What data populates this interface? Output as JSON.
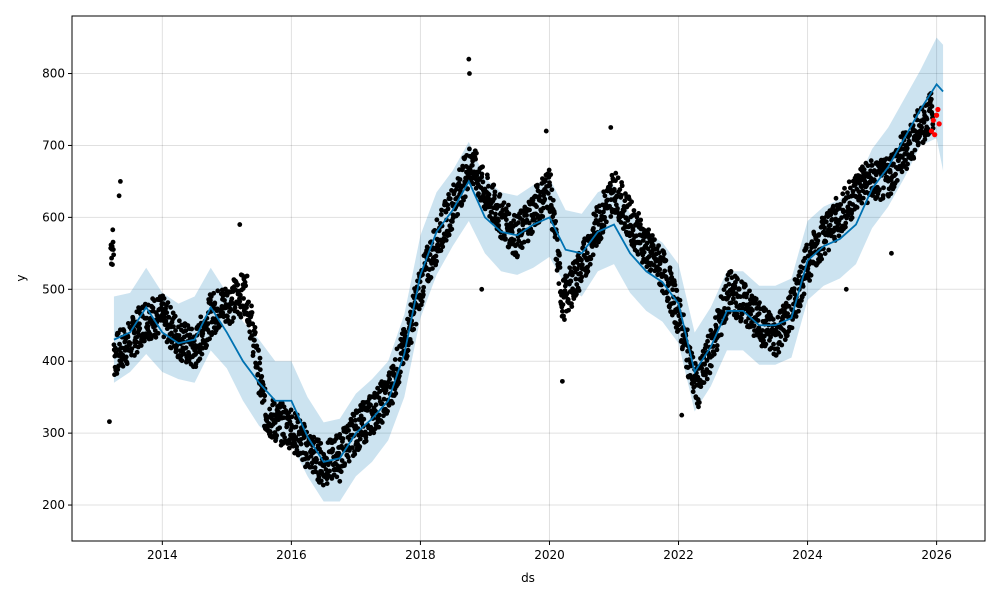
{
  "chart_data": {
    "type": "line",
    "title": "",
    "xlabel": "ds",
    "ylabel": "y",
    "xlim": [
      2012.6,
      2026.75
    ],
    "ylim": [
      150,
      880
    ],
    "x_ticks": [
      2014,
      2016,
      2018,
      2020,
      2022,
      2024,
      2026
    ],
    "x_tick_labels": [
      "2014",
      "2016",
      "2018",
      "2020",
      "2022",
      "2024",
      "2026"
    ],
    "y_ticks": [
      200,
      300,
      400,
      500,
      600,
      700,
      800
    ],
    "y_tick_labels": [
      "200",
      "300",
      "400",
      "500",
      "600",
      "700",
      "800"
    ],
    "grid": true,
    "colors": {
      "trend": "#0072B2",
      "interval": "#0072B2",
      "observed": "#000000",
      "recent": "#ff0000"
    },
    "forecast": {
      "x": [
        2013.25,
        2013.5,
        2013.75,
        2014.0,
        2014.25,
        2014.5,
        2014.75,
        2015.0,
        2015.25,
        2015.5,
        2015.75,
        2016.0,
        2016.25,
        2016.5,
        2016.75,
        2017.0,
        2017.25,
        2017.5,
        2017.75,
        2018.0,
        2018.25,
        2018.5,
        2018.75,
        2019.0,
        2019.25,
        2019.5,
        2019.75,
        2020.0,
        2020.25,
        2020.5,
        2020.75,
        2021.0,
        2021.25,
        2021.5,
        2021.75,
        2022.0,
        2022.25,
        2022.5,
        2022.75,
        2023.0,
        2023.25,
        2023.5,
        2023.75,
        2024.0,
        2024.25,
        2024.5,
        2024.75,
        2025.0,
        2025.25,
        2025.5,
        2025.75,
        2026.0,
        2026.1
      ],
      "yhat": [
        430,
        440,
        475,
        440,
        425,
        430,
        475,
        440,
        400,
        370,
        345,
        345,
        295,
        260,
        265,
        300,
        320,
        345,
        410,
        520,
        580,
        610,
        650,
        600,
        580,
        575,
        590,
        600,
        555,
        550,
        580,
        590,
        550,
        525,
        510,
        480,
        385,
        420,
        470,
        470,
        450,
        450,
        460,
        540,
        560,
        570,
        590,
        640,
        670,
        710,
        750,
        785,
        775
      ],
      "yhat_lower": [
        370,
        385,
        410,
        385,
        375,
        370,
        415,
        390,
        345,
        310,
        290,
        285,
        240,
        205,
        205,
        240,
        260,
        290,
        350,
        460,
        520,
        560,
        595,
        550,
        525,
        520,
        530,
        545,
        505,
        490,
        525,
        535,
        495,
        470,
        455,
        425,
        330,
        365,
        415,
        415,
        395,
        395,
        405,
        485,
        505,
        515,
        535,
        585,
        615,
        655,
        700,
        710,
        665
      ],
      "yhat_upper": [
        490,
        495,
        530,
        495,
        480,
        490,
        530,
        495,
        455,
        430,
        400,
        400,
        350,
        315,
        320,
        355,
        375,
        400,
        465,
        575,
        635,
        665,
        705,
        655,
        635,
        630,
        645,
        655,
        610,
        605,
        635,
        645,
        605,
        580,
        565,
        535,
        440,
        475,
        525,
        525,
        505,
        505,
        515,
        595,
        615,
        625,
        645,
        695,
        725,
        765,
        805,
        850,
        840
      ]
    },
    "observed": {
      "name": "observed",
      "segments": [
        {
          "x": [
            2013.2,
            2014.0
          ],
          "y": [
            380,
            480
          ]
        },
        {
          "x": [
            2014.0,
            2014.5
          ],
          "y": [
            480,
            400
          ]
        },
        {
          "x": [
            2014.5,
            2015.3
          ],
          "y": [
            400,
            580
          ]
        },
        {
          "x": [
            2015.3,
            2015.6
          ],
          "y": [
            580,
            300
          ]
        },
        {
          "x": [
            2015.6,
            2016.5
          ],
          "y": [
            300,
            250
          ]
        },
        {
          "x": [
            2016.5,
            2017.5
          ],
          "y": [
            250,
            360
          ]
        },
        {
          "x": [
            2017.5,
            2018.8
          ],
          "y": [
            360,
            700
          ]
        },
        {
          "x": [
            2018.8,
            2019.5
          ],
          "y": [
            700,
            570
          ]
        },
        {
          "x": [
            2019.5,
            2020.0
          ],
          "y": [
            570,
            680
          ]
        },
        {
          "x": [
            2020.0,
            2020.2
          ],
          "y": [
            680,
            420
          ]
        },
        {
          "x": [
            2020.2,
            2021.0
          ],
          "y": [
            420,
            680
          ]
        },
        {
          "x": [
            2021.0,
            2021.8
          ],
          "y": [
            680,
            530
          ]
        },
        {
          "x": [
            2021.8,
            2022.3
          ],
          "y": [
            530,
            340
          ]
        },
        {
          "x": [
            2022.3,
            2022.8
          ],
          "y": [
            340,
            520
          ]
        },
        {
          "x": [
            2022.8,
            2023.5
          ],
          "y": [
            520,
            420
          ]
        },
        {
          "x": [
            2023.5,
            2024.2
          ],
          "y": [
            420,
            580
          ]
        },
        {
          "x": [
            2024.2,
            2024.8
          ],
          "y": [
            580,
            680
          ]
        },
        {
          "x": [
            2024.8,
            2025.2
          ],
          "y": [
            680,
            640
          ]
        },
        {
          "x": [
            2025.2,
            2025.95
          ],
          "y": [
            640,
            730
          ]
        }
      ],
      "spikes": [
        {
          "x": 2013.35,
          "y": 650
        },
        {
          "x": 2013.33,
          "y": 630
        },
        {
          "x": 2018.75,
          "y": 820
        },
        {
          "x": 2018.76,
          "y": 800
        },
        {
          "x": 2015.2,
          "y": 590
        },
        {
          "x": 2019.95,
          "y": 720
        },
        {
          "x": 2020.95,
          "y": 725
        },
        {
          "x": 2020.2,
          "y": 372
        },
        {
          "x": 2022.05,
          "y": 325
        },
        {
          "x": 2013.18,
          "y": 316
        },
        {
          "x": 2018.95,
          "y": 500
        },
        {
          "x": 2025.3,
          "y": 550
        },
        {
          "x": 2024.6,
          "y": 500
        },
        {
          "x": 2016.75,
          "y": 233
        }
      ]
    },
    "recent": {
      "name": "recent",
      "x": [
        2025.92,
        2025.95,
        2025.97,
        2026.0,
        2026.02,
        2026.04
      ],
      "y": [
        720,
        735,
        715,
        742,
        750,
        730
      ]
    }
  }
}
